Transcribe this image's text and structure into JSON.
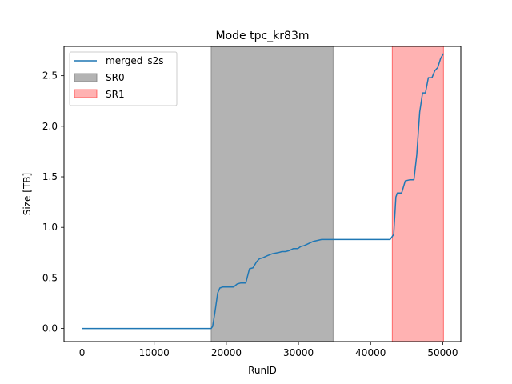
{
  "chart_data": {
    "type": "line",
    "title": "Mode tpc_kr83m",
    "xlabel": "RunID",
    "ylabel": "Size [TB]",
    "xlim": [
      -2500,
      52500
    ],
    "ylim": [
      -0.13,
      2.79
    ],
    "xticks": [
      0,
      10000,
      20000,
      30000,
      40000,
      50000
    ],
    "yticks": [
      0.0,
      0.5,
      1.0,
      1.5,
      2.0,
      2.5
    ],
    "xtick_labels": [
      "0",
      "10000",
      "20000",
      "30000",
      "40000",
      "50000"
    ],
    "ytick_labels": [
      "0.0",
      "0.5",
      "1.0",
      "1.5",
      "2.0",
      "2.5"
    ],
    "legend_position": "upper-left",
    "series": [
      {
        "name": "merged_s2s",
        "color": "#1f77b4",
        "x": [
          0,
          17900,
          18100,
          18400,
          18800,
          19100,
          19500,
          20000,
          21000,
          21500,
          22000,
          22700,
          23200,
          23700,
          24200,
          24600,
          25100,
          25700,
          26400,
          27200,
          27700,
          28200,
          28700,
          29300,
          29900,
          30300,
          30800,
          31400,
          32000,
          32600,
          33200,
          33800,
          34500,
          35000,
          38000,
          40000,
          42700,
          43200,
          43500,
          43700,
          44300,
          44800,
          45400,
          46000,
          46400,
          46800,
          47200,
          47600,
          48000,
          48500,
          48900,
          49300,
          49700,
          50100
        ],
        "y": [
          0.0,
          0.0,
          0.02,
          0.15,
          0.35,
          0.4,
          0.41,
          0.41,
          0.41,
          0.44,
          0.45,
          0.45,
          0.59,
          0.6,
          0.66,
          0.69,
          0.7,
          0.72,
          0.74,
          0.75,
          0.76,
          0.76,
          0.77,
          0.79,
          0.79,
          0.81,
          0.82,
          0.84,
          0.86,
          0.87,
          0.88,
          0.88,
          0.88,
          0.88,
          0.88,
          0.88,
          0.88,
          0.93,
          1.3,
          1.34,
          1.34,
          1.46,
          1.47,
          1.47,
          1.72,
          2.14,
          2.33,
          2.33,
          2.48,
          2.48,
          2.55,
          2.58,
          2.67,
          2.72
        ]
      }
    ],
    "regions": [
      {
        "name": "SR0",
        "x0": 17900,
        "x1": 34800,
        "color": "#808080",
        "opacity": 0.6
      },
      {
        "name": "SR1",
        "x0": 43000,
        "x1": 50100,
        "color": "#ff0000",
        "opacity": 0.3
      }
    ]
  }
}
